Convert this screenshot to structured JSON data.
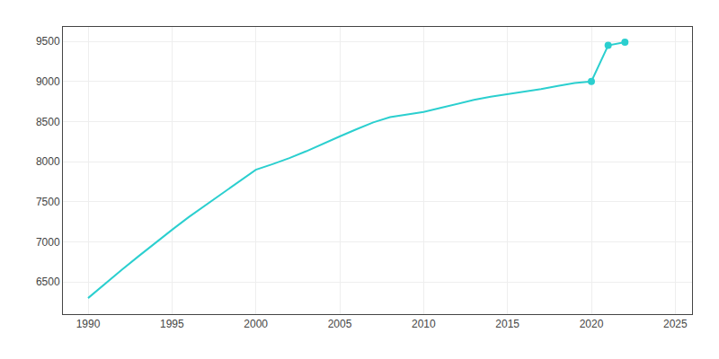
{
  "chart_data": {
    "type": "line",
    "x": [
      1990,
      1991,
      1992,
      1993,
      1994,
      1995,
      1996,
      1997,
      1998,
      1999,
      2000,
      2001,
      2002,
      2003,
      2004,
      2005,
      2006,
      2007,
      2008,
      2009,
      2010,
      2011,
      2012,
      2013,
      2014,
      2015,
      2016,
      2017,
      2018,
      2019,
      2020,
      2021,
      2022
    ],
    "series": [
      {
        "type": "line",
        "values": [
          6300,
          6480,
          6650,
          6820,
          6990,
          7150,
          7310,
          7460,
          7610,
          7760,
          7900,
          7970,
          8045,
          8130,
          8225,
          8315,
          8405,
          8490,
          8555,
          8590,
          8620,
          8670,
          8720,
          8770,
          8810,
          8840,
          8870,
          8905,
          8945,
          8980,
          9000,
          9450,
          9490
        ]
      },
      {
        "type": "scatter",
        "marker": "circle",
        "values": [
          null,
          null,
          null,
          null,
          null,
          null,
          null,
          null,
          null,
          null,
          null,
          null,
          null,
          null,
          null,
          null,
          null,
          null,
          null,
          null,
          null,
          null,
          null,
          null,
          null,
          null,
          null,
          null,
          null,
          null,
          9000,
          9450,
          9490
        ]
      }
    ],
    "color": "#2bcfcf",
    "xlim": [
      1988.5,
      2026
    ],
    "ylim": [
      6100,
      9680
    ],
    "xticks": [
      1990,
      1995,
      2000,
      2005,
      2010,
      2015,
      2020,
      2025
    ],
    "yticks": [
      6500,
      7000,
      7500,
      8000,
      8500,
      9000,
      9500
    ],
    "grid": true
  }
}
